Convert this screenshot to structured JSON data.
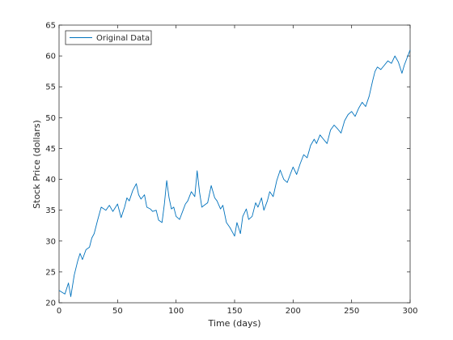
{
  "chart_data": {
    "type": "line",
    "xlabel": "Time (days)",
    "ylabel": "Stock Price (dollars)",
    "xlim": [
      0,
      300
    ],
    "ylim": [
      20,
      65
    ],
    "xticks": [
      "0",
      "50",
      "100",
      "150",
      "200",
      "250",
      "300"
    ],
    "yticks": [
      "20",
      "25",
      "30",
      "35",
      "40",
      "45",
      "50",
      "55",
      "60",
      "65"
    ],
    "grid": false,
    "legend_position": "top-left",
    "series": [
      {
        "name": "Original Data",
        "color": "#0072bd",
        "x": [
          0,
          5,
          8,
          10,
          13,
          16,
          18,
          20,
          23,
          26,
          28,
          30,
          33,
          36,
          40,
          43,
          46,
          50,
          53,
          56,
          58,
          60,
          63,
          66,
          68,
          70,
          73,
          75,
          78,
          80,
          83,
          85,
          88,
          90,
          92,
          94,
          96,
          98,
          100,
          103,
          106,
          108,
          110,
          113,
          116,
          118,
          120,
          122,
          124,
          127,
          130,
          133,
          135,
          138,
          140,
          143,
          146,
          148,
          150,
          152,
          155,
          157,
          160,
          162,
          165,
          168,
          170,
          173,
          175,
          178,
          180,
          183,
          186,
          189,
          192,
          195,
          198,
          200,
          203,
          206,
          209,
          212,
          215,
          218,
          220,
          223,
          226,
          229,
          232,
          235,
          238,
          241,
          244,
          247,
          250,
          253,
          256,
          259,
          262,
          265,
          268,
          270,
          272,
          275,
          278,
          281,
          284,
          287,
          290,
          293,
          295,
          297,
          299,
          300
        ],
        "y": [
          22,
          21.4,
          23.2,
          21.0,
          24.5,
          26.8,
          28.0,
          27.0,
          28.6,
          29.0,
          30.5,
          31.2,
          33.4,
          35.5,
          35.0,
          35.8,
          34.8,
          36.0,
          33.8,
          35.5,
          37.0,
          36.5,
          38.2,
          39.3,
          37.5,
          36.8,
          37.5,
          35.5,
          35.2,
          34.8,
          35.0,
          33.4,
          33.0,
          36.0,
          39.8,
          37.0,
          35.2,
          35.5,
          34.0,
          33.5,
          35.0,
          36.0,
          36.5,
          38.0,
          37.2,
          41.4,
          38.0,
          35.5,
          35.8,
          36.2,
          39.0,
          37.0,
          36.5,
          35.2,
          35.8,
          33.0,
          32.2,
          31.5,
          30.8,
          33.0,
          31.2,
          34.0,
          35.2,
          33.5,
          34.0,
          36.2,
          35.5,
          37.0,
          35.0,
          36.5,
          38.0,
          37.2,
          39.8,
          41.5,
          40.0,
          39.5,
          41.0,
          42.0,
          40.8,
          42.5,
          44.0,
          43.5,
          45.5,
          46.5,
          45.8,
          47.2,
          46.5,
          45.8,
          48.0,
          48.8,
          48.2,
          47.5,
          49.5,
          50.5,
          51.0,
          50.2,
          51.5,
          52.5,
          51.8,
          53.5,
          56.0,
          57.5,
          58.2,
          57.8,
          58.5,
          59.2,
          58.8,
          60.0,
          59.0,
          57.2,
          58.5,
          59.5,
          60.5,
          61.0
        ]
      }
    ]
  }
}
